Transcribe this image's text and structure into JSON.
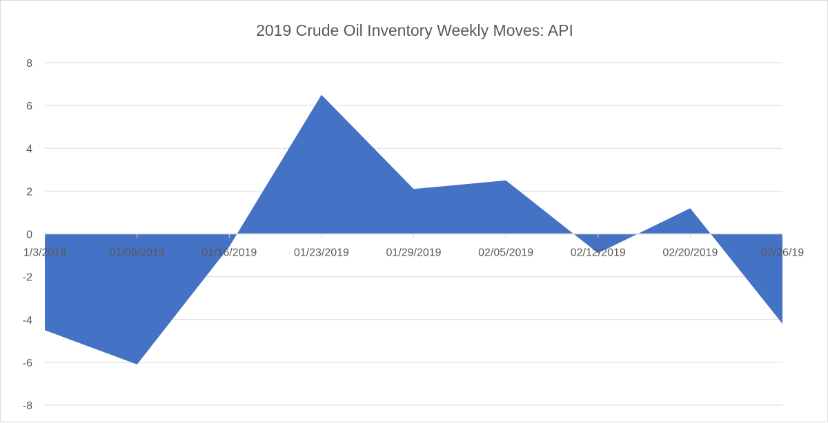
{
  "chart_data": {
    "type": "area",
    "title": "2019 Crude Oil Inventory Weekly Moves: API",
    "xlabel": "",
    "ylabel": "",
    "categories": [
      "1/3/2019",
      "01/08/2019",
      "01/16/2019",
      "01/23/2019",
      "01/29/2019",
      "02/05/2019",
      "02/12/2019",
      "02/20/2019",
      "02/26/19"
    ],
    "series": [
      {
        "name": "API",
        "values": [
          -4.5,
          -6.1,
          -0.6,
          6.5,
          2.1,
          2.5,
          -0.9,
          1.2,
          -4.2
        ]
      }
    ],
    "ylim": [
      -8,
      8
    ],
    "yticks": [
      8,
      6,
      4,
      2,
      0,
      -2,
      -4,
      -6,
      -8
    ],
    "grid": true,
    "legend": "none",
    "color": "#4472c4"
  }
}
